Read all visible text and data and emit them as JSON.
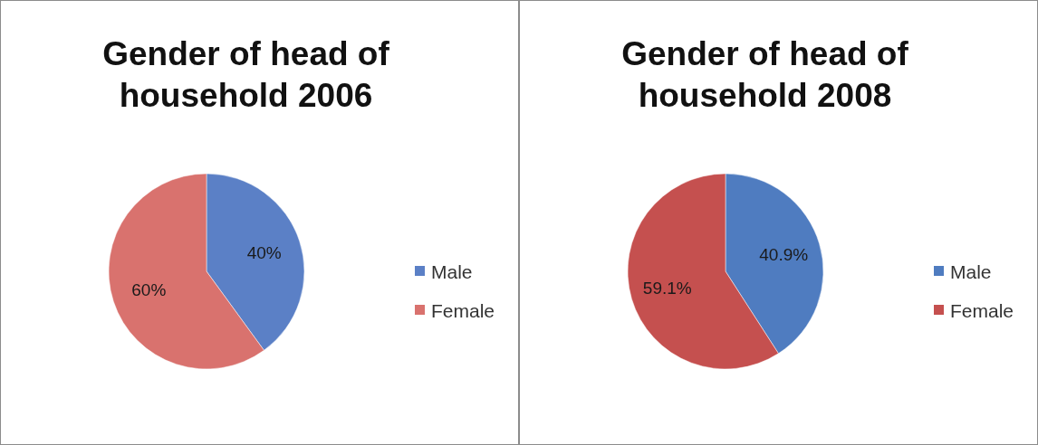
{
  "chart_data": [
    {
      "type": "pie",
      "title": "Gender of head of household 2006",
      "categories": [
        "Male",
        "Female"
      ],
      "values": [
        40,
        60
      ],
      "colors": [
        "#5b80c6",
        "#d9726e"
      ],
      "value_labels": [
        "40%",
        "60%"
      ],
      "legend": "right"
    },
    {
      "type": "pie",
      "title": "Gender of head of household 2008",
      "categories": [
        "Male",
        "Female"
      ],
      "values": [
        40.9,
        59.1
      ],
      "colors": [
        "#4f7cc0",
        "#c5504f"
      ],
      "value_labels": [
        "40.9%",
        "59.1%"
      ],
      "legend": "right"
    }
  ]
}
